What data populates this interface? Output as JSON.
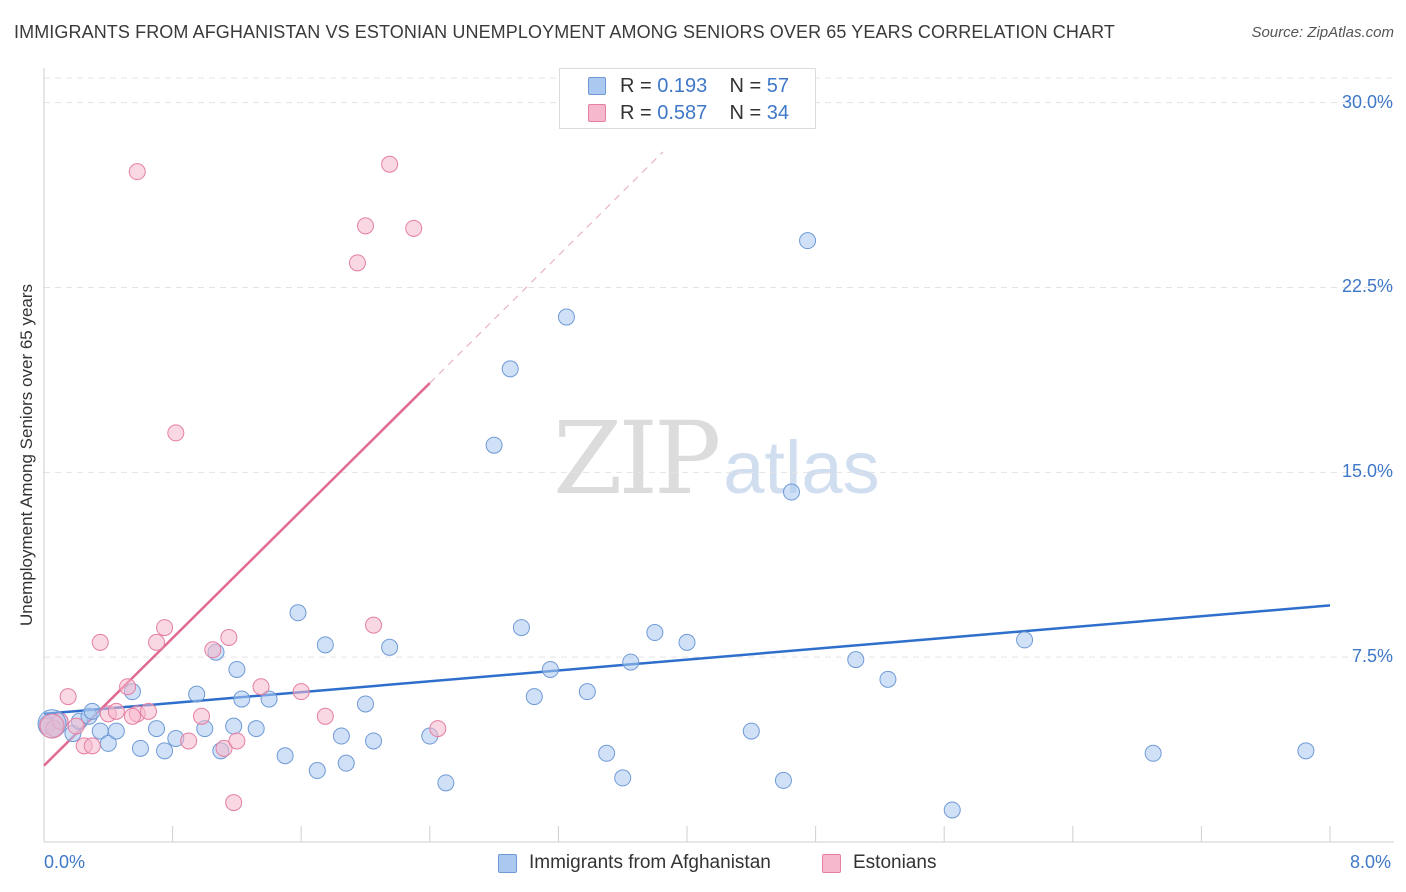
{
  "header": {
    "title": "IMMIGRANTS FROM AFGHANISTAN VS ESTONIAN UNEMPLOYMENT AMONG SENIORS OVER 65 YEARS CORRELATION CHART",
    "source": "Source: ZipAtlas.com"
  },
  "watermark": {
    "zip": "ZIP",
    "atlas": "atlas"
  },
  "legend_top": {
    "rows": [
      {
        "r_label": "R =",
        "r_value": "0.193",
        "n_label": "N =",
        "n_value": "57"
      },
      {
        "r_label": "R =",
        "r_value": "0.587",
        "n_label": "N =",
        "n_value": "34"
      }
    ]
  },
  "colors": {
    "blue_fill": "#aac8f0",
    "blue_stroke": "#6f9ad6",
    "blue_line": "#2f6fcc",
    "pink_fill": "#f6b8cc",
    "pink_stroke": "#e47fa1",
    "pink_line": "#e06a93",
    "grid": "#e3e3e3",
    "axis_text": "#3f78c8"
  },
  "chart_data": {
    "type": "scatter",
    "title": "IMMIGRANTS FROM AFGHANISTAN VS ESTONIAN UNEMPLOYMENT AMONG SENIORS OVER 65 YEARS CORRELATION CHART",
    "xlabel": "",
    "ylabel": "Unemployment Among Seniors over 65 years",
    "xlim": [
      0,
      8.0
    ],
    "ylim": [
      0,
      31.0
    ],
    "x_tick_labels": [
      "0.0%",
      "8.0%"
    ],
    "y_ticks": [
      7.5,
      15.0,
      22.5,
      30.0
    ],
    "y_tick_labels": [
      "7.5%",
      "15.0%",
      "22.5%",
      "30.0%"
    ],
    "legend_position": "bottom-center",
    "series": [
      {
        "name": "Immigrants from Afghanistan",
        "color": "blue",
        "R": 0.193,
        "N": 57,
        "trend": {
          "x0": 0.0,
          "y0": 5.2,
          "x1": 8.0,
          "y1": 9.6,
          "solid_to": 8.0
        },
        "points": [
          [
            0.02,
            4.8
          ],
          [
            0.07,
            4.6
          ],
          [
            0.1,
            4.9
          ],
          [
            0.18,
            4.4
          ],
          [
            0.22,
            4.9
          ],
          [
            0.28,
            5.1
          ],
          [
            0.3,
            5.3
          ],
          [
            0.35,
            4.5
          ],
          [
            0.4,
            4.0
          ],
          [
            0.45,
            4.5
          ],
          [
            0.55,
            6.1
          ],
          [
            0.6,
            3.8
          ],
          [
            0.7,
            4.6
          ],
          [
            0.75,
            3.7
          ],
          [
            0.82,
            4.2
          ],
          [
            0.95,
            6.0
          ],
          [
            1.0,
            4.6
          ],
          [
            1.07,
            7.7
          ],
          [
            1.1,
            3.7
          ],
          [
            1.18,
            4.7
          ],
          [
            1.2,
            7.0
          ],
          [
            1.23,
            5.8
          ],
          [
            1.32,
            4.6
          ],
          [
            1.4,
            5.8
          ],
          [
            1.5,
            3.5
          ],
          [
            1.58,
            9.3
          ],
          [
            1.7,
            2.9
          ],
          [
            1.75,
            8.0
          ],
          [
            1.85,
            4.3
          ],
          [
            1.88,
            3.2
          ],
          [
            2.0,
            5.6
          ],
          [
            2.05,
            4.1
          ],
          [
            2.15,
            7.9
          ],
          [
            2.4,
            4.3
          ],
          [
            2.5,
            2.4
          ],
          [
            2.8,
            16.1
          ],
          [
            2.9,
            19.2
          ],
          [
            2.97,
            8.7
          ],
          [
            3.05,
            5.9
          ],
          [
            3.15,
            7.0
          ],
          [
            3.25,
            21.3
          ],
          [
            3.38,
            6.1
          ],
          [
            3.5,
            3.6
          ],
          [
            3.6,
            2.6
          ],
          [
            3.65,
            7.3
          ],
          [
            3.8,
            8.5
          ],
          [
            4.0,
            8.1
          ],
          [
            4.4,
            4.5
          ],
          [
            4.6,
            2.5
          ],
          [
            4.65,
            14.2
          ],
          [
            4.75,
            24.4
          ],
          [
            5.05,
            7.4
          ],
          [
            5.25,
            6.6
          ],
          [
            5.65,
            1.3
          ],
          [
            6.1,
            8.2
          ],
          [
            6.9,
            3.6
          ],
          [
            7.85,
            3.7
          ]
        ]
      },
      {
        "name": "Estonians",
        "color": "pink",
        "R": 0.587,
        "N": 34,
        "trend": {
          "x0": 0.0,
          "y0": 3.1,
          "x1": 3.85,
          "y1": 28.0,
          "solid_to": 2.4
        },
        "points": [
          [
            0.02,
            4.7
          ],
          [
            0.06,
            4.6
          ],
          [
            0.1,
            4.9
          ],
          [
            0.15,
            5.9
          ],
          [
            0.2,
            4.7
          ],
          [
            0.25,
            3.9
          ],
          [
            0.3,
            3.9
          ],
          [
            0.35,
            8.1
          ],
          [
            0.4,
            5.2
          ],
          [
            0.45,
            5.3
          ],
          [
            0.52,
            6.3
          ],
          [
            0.58,
            5.2
          ],
          [
            0.58,
            27.2
          ],
          [
            0.65,
            5.3
          ],
          [
            0.7,
            8.1
          ],
          [
            0.75,
            8.7
          ],
          [
            0.82,
            16.6
          ],
          [
            0.9,
            4.1
          ],
          [
            0.98,
            5.1
          ],
          [
            1.05,
            7.8
          ],
          [
            1.12,
            3.8
          ],
          [
            1.15,
            8.3
          ],
          [
            1.18,
            1.6
          ],
          [
            1.2,
            4.1
          ],
          [
            1.35,
            6.3
          ],
          [
            1.6,
            6.1
          ],
          [
            1.75,
            5.1
          ],
          [
            1.95,
            23.5
          ],
          [
            2.0,
            25.0
          ],
          [
            2.05,
            8.8
          ],
          [
            2.15,
            27.5
          ],
          [
            2.3,
            24.9
          ],
          [
            2.45,
            4.6
          ],
          [
            0.55,
            5.1
          ]
        ]
      }
    ]
  },
  "bottom_legend": [
    {
      "label": "Immigrants from Afghanistan"
    },
    {
      "label": "Estonians"
    }
  ]
}
